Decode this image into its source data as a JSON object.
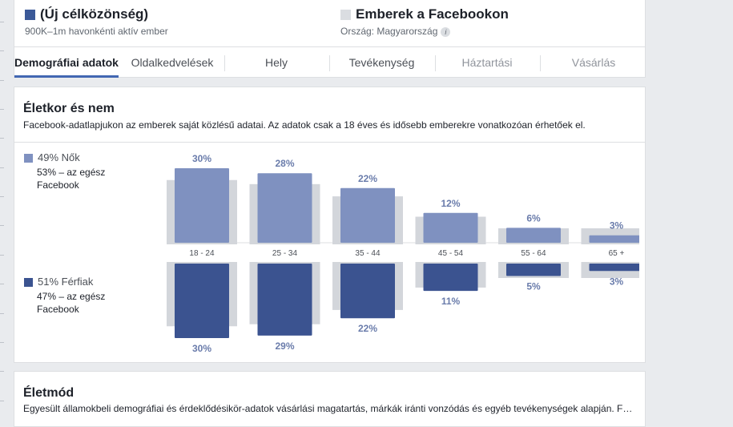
{
  "header": {
    "new_audience": {
      "title": "(Új célközönség)",
      "subtitle": "900K–1m havonkénti aktív ember",
      "color": "#3b5998"
    },
    "facebook_people": {
      "title": "Emberek a Facebookon",
      "subtitle": "Ország: Magyarország",
      "color": "#dadde1",
      "info_icon": "info-icon"
    }
  },
  "tabs": [
    {
      "label": "Demográfiai adatok",
      "active": true
    },
    {
      "label": "Oldalkedvelések"
    },
    {
      "label": "Hely"
    },
    {
      "label": "Tevékenység"
    },
    {
      "label": "Háztartási",
      "disabled": true
    },
    {
      "label": "Vásárlás",
      "disabled": true
    }
  ],
  "age_gender": {
    "title": "Életkor és nem",
    "description": "Facebook-adatlapjukon az emberek saját közlésű adatai. Az adatok csak a 18 éves és idősebb emberekre vonatkozóan érhetőek el.",
    "women": {
      "label": "49% Nők",
      "sub": "53% – az egész Facebook",
      "color": "#7f91c0"
    },
    "men": {
      "label": "51% Férfiak",
      "sub": "47% – az egész Facebook",
      "color": "#3b5390"
    }
  },
  "chart_data": {
    "type": "bar",
    "categories": [
      "18 - 24",
      "25 - 34",
      "35 - 44",
      "45 - 54",
      "55 - 64",
      "65 +"
    ],
    "series": [
      {
        "name": "Nők",
        "values": [
          30,
          28,
          22,
          12,
          6,
          3
        ],
        "labels": [
          "30%",
          "28%",
          "22%",
          "12%",
          "6%",
          "3%"
        ]
      },
      {
        "name": "Férfiak",
        "values": [
          30,
          29,
          22,
          11,
          5,
          3
        ],
        "labels": [
          "30%",
          "29%",
          "22%",
          "11%",
          "5%",
          "3%"
        ]
      }
    ],
    "comparison_color": "#d3d6db"
  },
  "lifestyle": {
    "title": "Életmód",
    "description": "Egyesült államokbeli demográfiai és érdeklődésikör-adatok vásárlási magatartás, márkák iránti vonzódás és egyéb tevékenységek alapján. Fo..."
  }
}
